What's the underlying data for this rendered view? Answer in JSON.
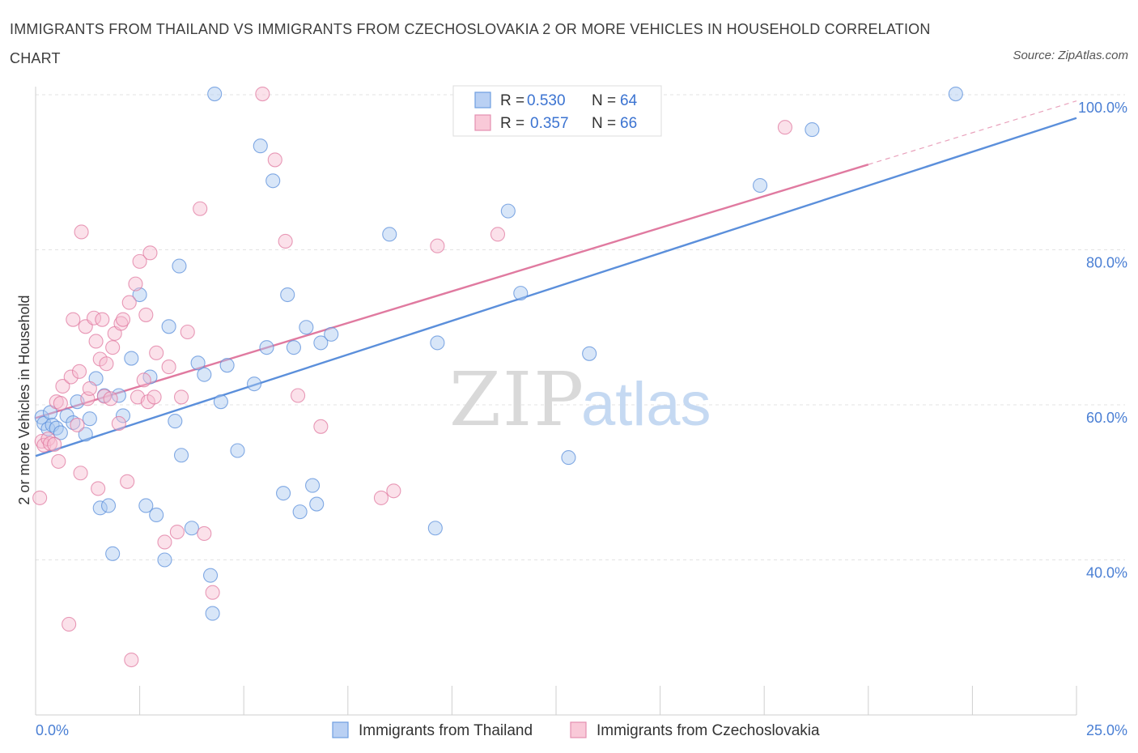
{
  "header": {
    "title": "IMMIGRANTS FROM THAILAND VS IMMIGRANTS FROM CZECHOSLOVAKIA 2 OR MORE VEHICLES IN HOUSEHOLD CORRELATION CHART",
    "source": "Source: ZipAtlas.com"
  },
  "watermark": {
    "zip": "ZIP",
    "atlas": "atlas"
  },
  "chart_data": {
    "type": "scatter",
    "title": "IMMIGRANTS FROM THAILAND VS IMMIGRANTS FROM CZECHOSLOVAKIA 2 OR MORE VEHICLES IN HOUSEHOLD CORRELATION CHART",
    "xlabel": "",
    "ylabel": "2 or more Vehicles in Household",
    "xlim": [
      0,
      25
    ],
    "ylim": [
      20,
      100
    ],
    "x_tick_labels": {
      "min": "0.0%",
      "max": "25.0%"
    },
    "y_ticks": [
      {
        "value": 100,
        "label": "100.0%"
      },
      {
        "value": 80,
        "label": "80.0%"
      },
      {
        "value": 60,
        "label": "60.0%"
      },
      {
        "value": 40,
        "label": "40.0%"
      }
    ],
    "grid": true,
    "legend_position": "top-center",
    "series": [
      {
        "name": "Immigrants from Thailand",
        "color": "#5b8fdb",
        "fill": "#a9c7f0",
        "stats": {
          "r_label": "R =",
          "r_value": "0.530",
          "n_label": "N =",
          "n_value": "64"
        },
        "trend": {
          "x0": 0,
          "y0": 53.4,
          "x1": 25,
          "y1": 97.0,
          "dashed_to": null
        },
        "points": [
          [
            0.15,
            58.4
          ],
          [
            0.2,
            57.6
          ],
          [
            0.3,
            56.9
          ],
          [
            0.35,
            59.0
          ],
          [
            0.4,
            57.4
          ],
          [
            0.5,
            57.0
          ],
          [
            0.6,
            56.4
          ],
          [
            0.75,
            58.6
          ],
          [
            0.9,
            57.7
          ],
          [
            1.0,
            60.4
          ],
          [
            1.2,
            56.2
          ],
          [
            1.3,
            58.2
          ],
          [
            1.45,
            63.4
          ],
          [
            1.55,
            46.7
          ],
          [
            1.65,
            61.2
          ],
          [
            1.75,
            47.0
          ],
          [
            1.85,
            40.8
          ],
          [
            2.0,
            61.2
          ],
          [
            2.1,
            58.6
          ],
          [
            2.3,
            66.0
          ],
          [
            2.5,
            74.2
          ],
          [
            2.65,
            47.0
          ],
          [
            2.75,
            63.6
          ],
          [
            2.9,
            45.8
          ],
          [
            3.1,
            40.0
          ],
          [
            3.2,
            70.1
          ],
          [
            3.35,
            57.9
          ],
          [
            3.45,
            77.9
          ],
          [
            3.5,
            53.5
          ],
          [
            3.75,
            44.1
          ],
          [
            3.9,
            65.4
          ],
          [
            4.05,
            63.9
          ],
          [
            4.2,
            38.0
          ],
          [
            4.25,
            33.1
          ],
          [
            4.3,
            100.1
          ],
          [
            4.45,
            60.4
          ],
          [
            4.6,
            65.1
          ],
          [
            4.85,
            54.1
          ],
          [
            5.25,
            62.7
          ],
          [
            5.4,
            93.4
          ],
          [
            5.55,
            67.4
          ],
          [
            5.7,
            88.9
          ],
          [
            5.95,
            48.6
          ],
          [
            6.05,
            74.2
          ],
          [
            6.2,
            67.4
          ],
          [
            6.35,
            46.2
          ],
          [
            6.5,
            70.0
          ],
          [
            6.65,
            49.6
          ],
          [
            6.75,
            47.2
          ],
          [
            6.85,
            68.0
          ],
          [
            7.1,
            69.1
          ],
          [
            8.5,
            82.0
          ],
          [
            9.6,
            44.1
          ],
          [
            9.65,
            68.0
          ],
          [
            11.35,
            85.0
          ],
          [
            11.65,
            74.4
          ],
          [
            12.8,
            53.2
          ],
          [
            13.3,
            66.6
          ],
          [
            17.4,
            88.3
          ],
          [
            18.65,
            95.5
          ],
          [
            22.1,
            100.1
          ]
        ]
      },
      {
        "name": "Immigrants from Czechoslovakia",
        "color": "#e07aa0",
        "fill": "#f7bcd0",
        "stats": {
          "r_label": "R =",
          "r_value": "0.357",
          "n_label": "N =",
          "n_value": "66"
        },
        "trend": {
          "x0": 0,
          "y0": 58.3,
          "x1": 20.0,
          "y1": 91.0,
          "dashed_to": {
            "x": 25,
            "y": 99.2
          }
        },
        "points": [
          [
            0.1,
            48.0
          ],
          [
            0.15,
            55.3
          ],
          [
            0.2,
            54.8
          ],
          [
            0.3,
            55.6
          ],
          [
            0.35,
            55.0
          ],
          [
            0.45,
            54.9
          ],
          [
            0.5,
            60.4
          ],
          [
            0.55,
            52.7
          ],
          [
            0.6,
            60.2
          ],
          [
            0.65,
            62.4
          ],
          [
            0.8,
            31.7
          ],
          [
            0.85,
            63.6
          ],
          [
            0.9,
            71.0
          ],
          [
            1.0,
            57.4
          ],
          [
            1.05,
            64.3
          ],
          [
            1.08,
            51.2
          ],
          [
            1.1,
            82.3
          ],
          [
            1.2,
            70.1
          ],
          [
            1.25,
            60.8
          ],
          [
            1.3,
            62.1
          ],
          [
            1.4,
            71.2
          ],
          [
            1.45,
            68.2
          ],
          [
            1.5,
            49.2
          ],
          [
            1.55,
            65.9
          ],
          [
            1.6,
            71.0
          ],
          [
            1.65,
            61.1
          ],
          [
            1.7,
            65.3
          ],
          [
            1.8,
            60.8
          ],
          [
            1.85,
            67.4
          ],
          [
            1.9,
            69.2
          ],
          [
            2.0,
            57.6
          ],
          [
            2.05,
            70.5
          ],
          [
            2.1,
            71.0
          ],
          [
            2.2,
            50.1
          ],
          [
            2.25,
            73.2
          ],
          [
            2.3,
            27.1
          ],
          [
            2.4,
            75.6
          ],
          [
            2.45,
            61.0
          ],
          [
            2.5,
            78.5
          ],
          [
            2.6,
            63.2
          ],
          [
            2.65,
            71.6
          ],
          [
            2.7,
            60.4
          ],
          [
            2.75,
            79.6
          ],
          [
            2.85,
            61.0
          ],
          [
            2.9,
            66.7
          ],
          [
            3.1,
            42.3
          ],
          [
            3.2,
            64.9
          ],
          [
            3.4,
            43.6
          ],
          [
            3.5,
            61.0
          ],
          [
            3.65,
            69.4
          ],
          [
            3.95,
            85.3
          ],
          [
            4.05,
            43.4
          ],
          [
            4.25,
            35.8
          ],
          [
            5.45,
            100.1
          ],
          [
            5.75,
            91.6
          ],
          [
            6.0,
            81.1
          ],
          [
            6.3,
            61.2
          ],
          [
            6.85,
            57.2
          ],
          [
            8.3,
            48.0
          ],
          [
            8.6,
            48.9
          ],
          [
            9.65,
            80.5
          ],
          [
            11.1,
            82.0
          ],
          [
            18.0,
            95.8
          ]
        ]
      }
    ]
  },
  "bottom_legend": [
    {
      "label": "Immigrants from Thailand"
    },
    {
      "label": "Immigrants from Czechoslovakia"
    }
  ]
}
